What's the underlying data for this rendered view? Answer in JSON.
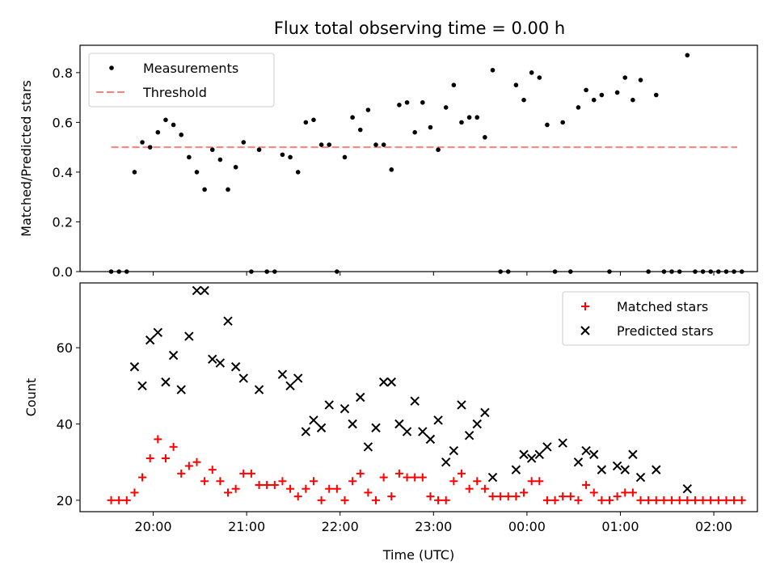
{
  "chart_data": [
    {
      "type": "scatter",
      "title": "Flux total observing time = 0.00 h",
      "ylabel": "Matched/Predicted stars",
      "ylim": [
        0,
        0.91
      ],
      "yticks": [
        0.0,
        0.2,
        0.4,
        0.6,
        0.8
      ],
      "ytick_labels": [
        "0.0",
        "0.2",
        "0.4",
        "0.6",
        "0.8"
      ],
      "xlim": [
        "19:13",
        "02:28"
      ],
      "legend_position": "top-left",
      "legend": [
        {
          "label": "Measurements",
          "marker": "dot",
          "color": "#000000"
        },
        {
          "label": "Threshold",
          "marker": "dashed-line",
          "color": "#ff7f7f"
        }
      ],
      "threshold": {
        "name": "Threshold",
        "y": 0.5,
        "x_start": "19:33",
        "x_end": "02:15"
      },
      "series": [
        {
          "name": "Measurements",
          "color": "#000000",
          "points": [
            [
              "19:33",
              0.0
            ],
            [
              "19:38",
              0.0
            ],
            [
              "19:43",
              0.0
            ],
            [
              "19:48",
              0.4
            ],
            [
              "19:53",
              0.52
            ],
            [
              "19:58",
              0.5
            ],
            [
              "20:03",
              0.56
            ],
            [
              "20:08",
              0.61
            ],
            [
              "20:13",
              0.59
            ],
            [
              "20:18",
              0.55
            ],
            [
              "20:23",
              0.46
            ],
            [
              "20:28",
              0.4
            ],
            [
              "20:33",
              0.33
            ],
            [
              "20:38",
              0.49
            ],
            [
              "20:43",
              0.45
            ],
            [
              "20:48",
              0.33
            ],
            [
              "20:53",
              0.42
            ],
            [
              "20:58",
              0.52
            ],
            [
              "21:03",
              0.0
            ],
            [
              "21:08",
              0.49
            ],
            [
              "21:13",
              0.0
            ],
            [
              "21:18",
              0.0
            ],
            [
              "21:23",
              0.47
            ],
            [
              "21:28",
              0.46
            ],
            [
              "21:33",
              0.4
            ],
            [
              "21:38",
              0.6
            ],
            [
              "21:43",
              0.61
            ],
            [
              "21:48",
              0.51
            ],
            [
              "21:53",
              0.51
            ],
            [
              "21:58",
              0.0
            ],
            [
              "22:03",
              0.46
            ],
            [
              "22:08",
              0.62
            ],
            [
              "22:13",
              0.57
            ],
            [
              "22:18",
              0.65
            ],
            [
              "22:23",
              0.51
            ],
            [
              "22:28",
              0.51
            ],
            [
              "22:33",
              0.41
            ],
            [
              "22:38",
              0.67
            ],
            [
              "22:43",
              0.68
            ],
            [
              "22:48",
              0.56
            ],
            [
              "22:53",
              0.68
            ],
            [
              "22:58",
              0.58
            ],
            [
              "23:03",
              0.49
            ],
            [
              "23:08",
              0.66
            ],
            [
              "23:13",
              0.75
            ],
            [
              "23:18",
              0.6
            ],
            [
              "23:23",
              0.62
            ],
            [
              "23:28",
              0.62
            ],
            [
              "23:33",
              0.54
            ],
            [
              "23:38",
              0.81
            ],
            [
              "23:43",
              0.0
            ],
            [
              "23:48",
              0.0
            ],
            [
              "23:53",
              0.75
            ],
            [
              "23:58",
              0.69
            ],
            [
              "00:03",
              0.8
            ],
            [
              "00:08",
              0.78
            ],
            [
              "00:13",
              0.59
            ],
            [
              "00:18",
              0.0
            ],
            [
              "00:23",
              0.6
            ],
            [
              "00:28",
              0.0
            ],
            [
              "00:33",
              0.66
            ],
            [
              "00:38",
              0.73
            ],
            [
              "00:43",
              0.69
            ],
            [
              "00:48",
              0.71
            ],
            [
              "00:53",
              0.0
            ],
            [
              "00:58",
              0.72
            ],
            [
              "01:03",
              0.78
            ],
            [
              "01:08",
              0.69
            ],
            [
              "01:13",
              0.77
            ],
            [
              "01:18",
              0.0
            ],
            [
              "01:23",
              0.71
            ],
            [
              "01:28",
              0.0
            ],
            [
              "01:33",
              0.0
            ],
            [
              "01:38",
              0.0
            ],
            [
              "01:43",
              0.87
            ],
            [
              "01:48",
              0.0
            ],
            [
              "01:53",
              0.0
            ],
            [
              "01:58",
              0.0
            ],
            [
              "02:03",
              0.0
            ],
            [
              "02:08",
              0.0
            ],
            [
              "02:13",
              0.0
            ],
            [
              "02:18",
              0.0
            ]
          ]
        }
      ]
    },
    {
      "type": "scatter",
      "xlabel": "Time (UTC)",
      "ylabel": "Count",
      "ylim": [
        17,
        77
      ],
      "yticks": [
        20,
        40,
        60
      ],
      "ytick_labels": [
        "20",
        "40",
        "60"
      ],
      "xlim": [
        "19:13",
        "02:28"
      ],
      "xticks": [
        "20:00",
        "21:00",
        "22:00",
        "23:00",
        "00:00",
        "01:00",
        "02:00"
      ],
      "xtick_labels": [
        "20:00",
        "21:00",
        "22:00",
        "23:00",
        "00:00",
        "01:00",
        "02:00"
      ],
      "legend_position": "top-right",
      "legend": [
        {
          "label": "Matched stars",
          "marker": "plus",
          "color": "#ff0000"
        },
        {
          "label": "Predicted stars",
          "marker": "x",
          "color": "#000000"
        }
      ],
      "series": [
        {
          "name": "Matched stars",
          "marker": "plus",
          "color": "#ff0000",
          "points": [
            [
              "19:33",
              20
            ],
            [
              "19:38",
              20
            ],
            [
              "19:43",
              20
            ],
            [
              "19:48",
              22
            ],
            [
              "19:53",
              26
            ],
            [
              "19:58",
              31
            ],
            [
              "20:03",
              36
            ],
            [
              "20:08",
              31
            ],
            [
              "20:13",
              34
            ],
            [
              "20:18",
              27
            ],
            [
              "20:23",
              29
            ],
            [
              "20:28",
              30
            ],
            [
              "20:33",
              25
            ],
            [
              "20:38",
              28
            ],
            [
              "20:43",
              25
            ],
            [
              "20:48",
              22
            ],
            [
              "20:53",
              23
            ],
            [
              "20:58",
              27
            ],
            [
              "21:03",
              27
            ],
            [
              "21:08",
              24
            ],
            [
              "21:13",
              24
            ],
            [
              "21:18",
              24
            ],
            [
              "21:23",
              25
            ],
            [
              "21:28",
              23
            ],
            [
              "21:33",
              21
            ],
            [
              "21:38",
              23
            ],
            [
              "21:43",
              25
            ],
            [
              "21:48",
              20
            ],
            [
              "21:53",
              23
            ],
            [
              "21:58",
              23
            ],
            [
              "22:03",
              20
            ],
            [
              "22:08",
              25
            ],
            [
              "22:13",
              27
            ],
            [
              "22:18",
              22
            ],
            [
              "22:23",
              20
            ],
            [
              "22:28",
              26
            ],
            [
              "22:33",
              21
            ],
            [
              "22:38",
              27
            ],
            [
              "22:43",
              26
            ],
            [
              "22:48",
              26
            ],
            [
              "22:53",
              26
            ],
            [
              "22:58",
              21
            ],
            [
              "23:03",
              20
            ],
            [
              "23:08",
              20
            ],
            [
              "23:13",
              25
            ],
            [
              "23:18",
              27
            ],
            [
              "23:23",
              23
            ],
            [
              "23:28",
              25
            ],
            [
              "23:33",
              23
            ],
            [
              "23:38",
              21
            ],
            [
              "23:43",
              21
            ],
            [
              "23:48",
              21
            ],
            [
              "23:53",
              21
            ],
            [
              "23:58",
              22
            ],
            [
              "00:03",
              25
            ],
            [
              "00:08",
              25
            ],
            [
              "00:13",
              20
            ],
            [
              "00:18",
              20
            ],
            [
              "00:23",
              21
            ],
            [
              "00:28",
              21
            ],
            [
              "00:33",
              20
            ],
            [
              "00:38",
              24
            ],
            [
              "00:43",
              22
            ],
            [
              "00:48",
              20
            ],
            [
              "00:53",
              20
            ],
            [
              "00:58",
              21
            ],
            [
              "01:03",
              22
            ],
            [
              "01:08",
              22
            ],
            [
              "01:13",
              20
            ],
            [
              "01:18",
              20
            ],
            [
              "01:23",
              20
            ],
            [
              "01:28",
              20
            ],
            [
              "01:33",
              20
            ],
            [
              "01:38",
              20
            ],
            [
              "01:43",
              20
            ],
            [
              "01:48",
              20
            ],
            [
              "01:53",
              20
            ],
            [
              "01:58",
              20
            ],
            [
              "02:03",
              20
            ],
            [
              "02:08",
              20
            ],
            [
              "02:13",
              20
            ],
            [
              "02:18",
              20
            ]
          ]
        },
        {
          "name": "Predicted stars",
          "marker": "x",
          "color": "#000000",
          "points": [
            [
              "19:48",
              55
            ],
            [
              "19:53",
              50
            ],
            [
              "19:58",
              62
            ],
            [
              "20:03",
              64
            ],
            [
              "20:08",
              51
            ],
            [
              "20:13",
              58
            ],
            [
              "20:18",
              49
            ],
            [
              "20:23",
              63
            ],
            [
              "20:28",
              75
            ],
            [
              "20:33",
              75
            ],
            [
              "20:38",
              57
            ],
            [
              "20:43",
              56
            ],
            [
              "20:48",
              67
            ],
            [
              "20:53",
              55
            ],
            [
              "20:58",
              52
            ],
            [
              "21:08",
              49
            ],
            [
              "21:23",
              53
            ],
            [
              "21:28",
              50
            ],
            [
              "21:33",
              52
            ],
            [
              "21:38",
              38
            ],
            [
              "21:43",
              41
            ],
            [
              "21:48",
              39
            ],
            [
              "21:53",
              45
            ],
            [
              "22:03",
              44
            ],
            [
              "22:08",
              40
            ],
            [
              "22:13",
              47
            ],
            [
              "22:18",
              34
            ],
            [
              "22:23",
              39
            ],
            [
              "22:28",
              51
            ],
            [
              "22:33",
              51
            ],
            [
              "22:38",
              40
            ],
            [
              "22:43",
              38
            ],
            [
              "22:48",
              46
            ],
            [
              "22:53",
              38
            ],
            [
              "22:58",
              36
            ],
            [
              "23:03",
              41
            ],
            [
              "23:08",
              30
            ],
            [
              "23:13",
              33
            ],
            [
              "23:18",
              45
            ],
            [
              "23:23",
              37
            ],
            [
              "23:28",
              40
            ],
            [
              "23:33",
              43
            ],
            [
              "23:38",
              26
            ],
            [
              "23:53",
              28
            ],
            [
              "23:58",
              32
            ],
            [
              "00:03",
              31
            ],
            [
              "00:08",
              32
            ],
            [
              "00:13",
              34
            ],
            [
              "00:23",
              35
            ],
            [
              "00:33",
              30
            ],
            [
              "00:38",
              33
            ],
            [
              "00:43",
              32
            ],
            [
              "00:48",
              28
            ],
            [
              "00:58",
              29
            ],
            [
              "01:03",
              28
            ],
            [
              "01:08",
              32
            ],
            [
              "01:13",
              26
            ],
            [
              "01:23",
              28
            ],
            [
              "01:43",
              23
            ]
          ]
        }
      ]
    }
  ]
}
